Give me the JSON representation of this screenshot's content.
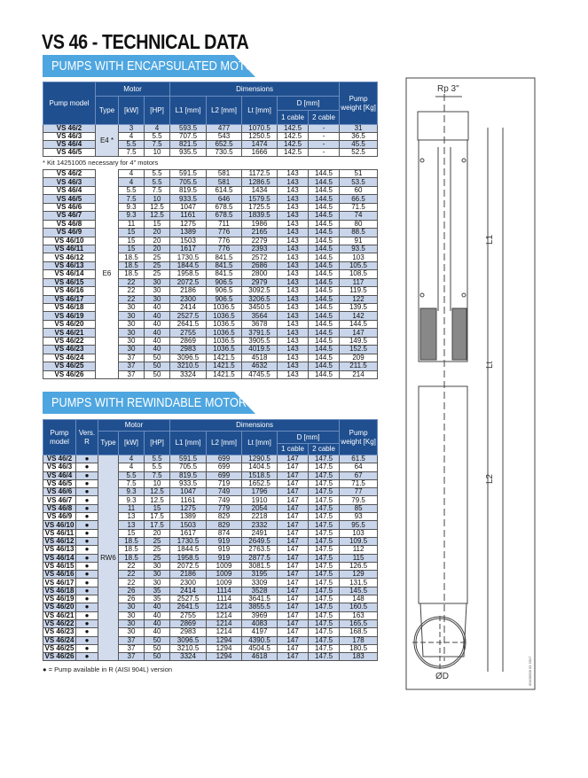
{
  "title": "VS 46 - TECHNICAL DATA",
  "colors": {
    "header": "#1f4f8f",
    "banner": "#4ea6e0",
    "row_alt": "#c9d5ea"
  },
  "encapsulated": {
    "banner": "PUMPS WITH ENCAPSULATED MOTOR",
    "headers": {
      "model": "Pump model",
      "motor": "Motor",
      "type": "Type",
      "kw": "[kW]",
      "hp": "[HP]",
      "dimensions": "Dimensions",
      "l1": "L1 [mm]",
      "l2": "L2 [mm]",
      "lt": "Lt [mm]",
      "d": "D [mm]",
      "c1": "1 cable",
      "c2": "2 cable",
      "weight": "Pump weight [Kg]"
    },
    "e4_type": "E4 *",
    "e4_rows": [
      [
        "VS 46/2",
        "3",
        "4",
        "593.5",
        "477",
        "1070.5",
        "142.5",
        "-",
        "31"
      ],
      [
        "VS 46/3",
        "4",
        "5.5",
        "707.5",
        "543",
        "1250.5",
        "142.5",
        "-",
        "36.5"
      ],
      [
        "VS 46/4",
        "5.5",
        "7.5",
        "821.5",
        "652.5",
        "1474",
        "142.5",
        "-",
        "45.5"
      ],
      [
        "VS 46/5",
        "7.5",
        "10",
        "935.5",
        "730.5",
        "1666",
        "142.5",
        "-",
        "52.5"
      ]
    ],
    "note": "* Kit 14251005 necessary for 4\" motors",
    "e6_type": "E6",
    "e6_rows": [
      [
        "VS 46/2",
        "4",
        "5.5",
        "591.5",
        "581",
        "1172.5",
        "143",
        "144.5",
        "51"
      ],
      [
        "VS 46/3",
        "4",
        "5.5",
        "705.5",
        "581",
        "1286.5",
        "143",
        "144.5",
        "53.5"
      ],
      [
        "VS 46/4",
        "5.5",
        "7.5",
        "819.5",
        "614.5",
        "1434",
        "143",
        "144.5",
        "60"
      ],
      [
        "VS 46/5",
        "7.5",
        "10",
        "933.5",
        "646",
        "1579.5",
        "143",
        "144.5",
        "66.5"
      ],
      [
        "VS 46/6",
        "9.3",
        "12.5",
        "1047",
        "678.5",
        "1725.5",
        "143",
        "144.5",
        "71.5"
      ],
      [
        "VS 46/7",
        "9.3",
        "12.5",
        "1161",
        "678.5",
        "1839.5",
        "143",
        "144.5",
        "74"
      ],
      [
        "VS 46/8",
        "11",
        "15",
        "1275",
        "711",
        "1986",
        "143",
        "144.5",
        "80"
      ],
      [
        "VS 46/9",
        "15",
        "20",
        "1389",
        "776",
        "2165",
        "143",
        "144.5",
        "88.5"
      ],
      [
        "VS 46/10",
        "15",
        "20",
        "1503",
        "776",
        "2279",
        "143",
        "144.5",
        "91"
      ],
      [
        "VS 46/11",
        "15",
        "20",
        "1617",
        "776",
        "2393",
        "143",
        "144.5",
        "93.5"
      ],
      [
        "VS 46/12",
        "18.5",
        "25",
        "1730.5",
        "841.5",
        "2572",
        "143",
        "144.5",
        "103"
      ],
      [
        "VS 46/13",
        "18.5",
        "25",
        "1844.5",
        "841.5",
        "2686",
        "143",
        "144.5",
        "105.5"
      ],
      [
        "VS 46/14",
        "18.5",
        "25",
        "1958.5",
        "841.5",
        "2800",
        "143",
        "144.5",
        "108.5"
      ],
      [
        "VS 46/15",
        "22",
        "30",
        "2072.5",
        "906.5",
        "2979",
        "143",
        "144.5",
        "117"
      ],
      [
        "VS 46/16",
        "22",
        "30",
        "2186",
        "906.5",
        "3092.5",
        "143",
        "144.5",
        "119.5"
      ],
      [
        "VS 46/17",
        "22",
        "30",
        "2300",
        "906.5",
        "3206.5",
        "143",
        "144.5",
        "122"
      ],
      [
        "VS 46/18",
        "30",
        "40",
        "2414",
        "1036.5",
        "3450.5",
        "143",
        "144.5",
        "139.5"
      ],
      [
        "VS 46/19",
        "30",
        "40",
        "2527.5",
        "1036.5",
        "3564",
        "143",
        "144.5",
        "142"
      ],
      [
        "VS 46/20",
        "30",
        "40",
        "2641.5",
        "1036.5",
        "3678",
        "143",
        "144.5",
        "144.5"
      ],
      [
        "VS 46/21",
        "30",
        "40",
        "2755",
        "1036.5",
        "3791.5",
        "143",
        "144.5",
        "147"
      ],
      [
        "VS 46/22",
        "30",
        "40",
        "2869",
        "1036.5",
        "3905.5",
        "143",
        "144.5",
        "149.5"
      ],
      [
        "VS 46/23",
        "30",
        "40",
        "2983",
        "1036.5",
        "4019.5",
        "143",
        "144.5",
        "152.5"
      ],
      [
        "VS 46/24",
        "37",
        "50",
        "3096.5",
        "1421.5",
        "4518",
        "143",
        "144.5",
        "209"
      ],
      [
        "VS 46/25",
        "37",
        "50",
        "3210.5",
        "1421.5",
        "4632",
        "143",
        "144.5",
        "211.5"
      ],
      [
        "VS 46/26",
        "37",
        "50",
        "3324",
        "1421.5",
        "4745.5",
        "143",
        "144.5",
        "214"
      ]
    ]
  },
  "rewindable": {
    "banner": "PUMPS WITH REWINDABLE MOTOR",
    "headers": {
      "model": "Pump model",
      "vers": "Vers. R",
      "motor": "Motor",
      "type": "Type",
      "kw": "[kW]",
      "hp": "[HP]",
      "dimensions": "Dimensions",
      "l1": "L1 [mm]",
      "l2": "L2 [mm]",
      "lt": "Lt [mm]",
      "d": "D [mm]",
      "c1": "1 cable",
      "c2": "2 cable",
      "weight": "Pump weight [Kg]"
    },
    "type": "RW6",
    "dot": "●",
    "rows": [
      [
        "VS 46/2",
        "4",
        "5.5",
        "591.5",
        "699",
        "1290.5",
        "147",
        "147.5",
        "61.5"
      ],
      [
        "VS 46/3",
        "4",
        "5.5",
        "705.5",
        "699",
        "1404.5",
        "147",
        "147.5",
        "64"
      ],
      [
        "VS 46/4",
        "5.5",
        "7.5",
        "819.5",
        "699",
        "1518.5",
        "147",
        "147.5",
        "67"
      ],
      [
        "VS 46/5",
        "7.5",
        "10",
        "933.5",
        "719",
        "1652.5",
        "147",
        "147.5",
        "71.5"
      ],
      [
        "VS 46/6",
        "9.3",
        "12.5",
        "1047",
        "749",
        "1796",
        "147",
        "147.5",
        "77"
      ],
      [
        "VS 46/7",
        "9.3",
        "12.5",
        "1161",
        "749",
        "1910",
        "147",
        "147.5",
        "79.5"
      ],
      [
        "VS 46/8",
        "11",
        "15",
        "1275",
        "779",
        "2054",
        "147",
        "147.5",
        "85"
      ],
      [
        "VS 46/9",
        "13",
        "17.5",
        "1389",
        "829",
        "2218",
        "147",
        "147.5",
        "93"
      ],
      [
        "VS 46/10",
        "13",
        "17.5",
        "1503",
        "829",
        "2332",
        "147",
        "147.5",
        "95.5"
      ],
      [
        "VS 46/11",
        "15",
        "20",
        "1617",
        "874",
        "2491",
        "147",
        "147.5",
        "103"
      ],
      [
        "VS 46/12",
        "18.5",
        "25",
        "1730.5",
        "919",
        "2649.5",
        "147",
        "147.5",
        "109.5"
      ],
      [
        "VS 46/13",
        "18.5",
        "25",
        "1844.5",
        "919",
        "2763.5",
        "147",
        "147.5",
        "112"
      ],
      [
        "VS 46/14",
        "18.5",
        "25",
        "1958.5",
        "919",
        "2877.5",
        "147",
        "147.5",
        "115"
      ],
      [
        "VS 46/15",
        "22",
        "30",
        "2072.5",
        "1009",
        "3081.5",
        "147",
        "147.5",
        "126.5"
      ],
      [
        "VS 46/16",
        "22",
        "30",
        "2186",
        "1009",
        "3195",
        "147",
        "147.5",
        "129"
      ],
      [
        "VS 46/17",
        "22",
        "30",
        "2300",
        "1009",
        "3309",
        "147",
        "147.5",
        "131.5"
      ],
      [
        "VS 46/18",
        "26",
        "35",
        "2414",
        "1114",
        "3528",
        "147",
        "147.5",
        "145.5"
      ],
      [
        "VS 46/19",
        "26",
        "35",
        "2527.5",
        "1114",
        "3641.5",
        "147",
        "147.5",
        "148"
      ],
      [
        "VS 46/20",
        "30",
        "40",
        "2641.5",
        "1214",
        "3855.5",
        "147",
        "147.5",
        "160.5"
      ],
      [
        "VS 46/21",
        "30",
        "40",
        "2755",
        "1214",
        "3969",
        "147",
        "147.5",
        "163"
      ],
      [
        "VS 46/22",
        "30",
        "40",
        "2869",
        "1214",
        "4083",
        "147",
        "147.5",
        "165.5"
      ],
      [
        "VS 46/23",
        "30",
        "40",
        "2983",
        "1214",
        "4197",
        "147",
        "147.5",
        "168.5"
      ],
      [
        "VS 46/24",
        "37",
        "50",
        "3096.5",
        "1294",
        "4390.5",
        "147",
        "147.5",
        "178"
      ],
      [
        "VS 46/25",
        "37",
        "50",
        "3210.5",
        "1294",
        "4504.5",
        "147",
        "147.5",
        "180.5"
      ],
      [
        "VS 46/26",
        "37",
        "50",
        "3324",
        "1294",
        "4618",
        "147",
        "147.5",
        "183"
      ]
    ],
    "note": "● = Pump available in R (AISI 904L) version"
  },
  "drawing": {
    "rp": "Rp 3\"",
    "l1": "L1",
    "lt": "Lt",
    "l2": "L2",
    "d": "ØD",
    "code": "00100058 03 2017"
  }
}
